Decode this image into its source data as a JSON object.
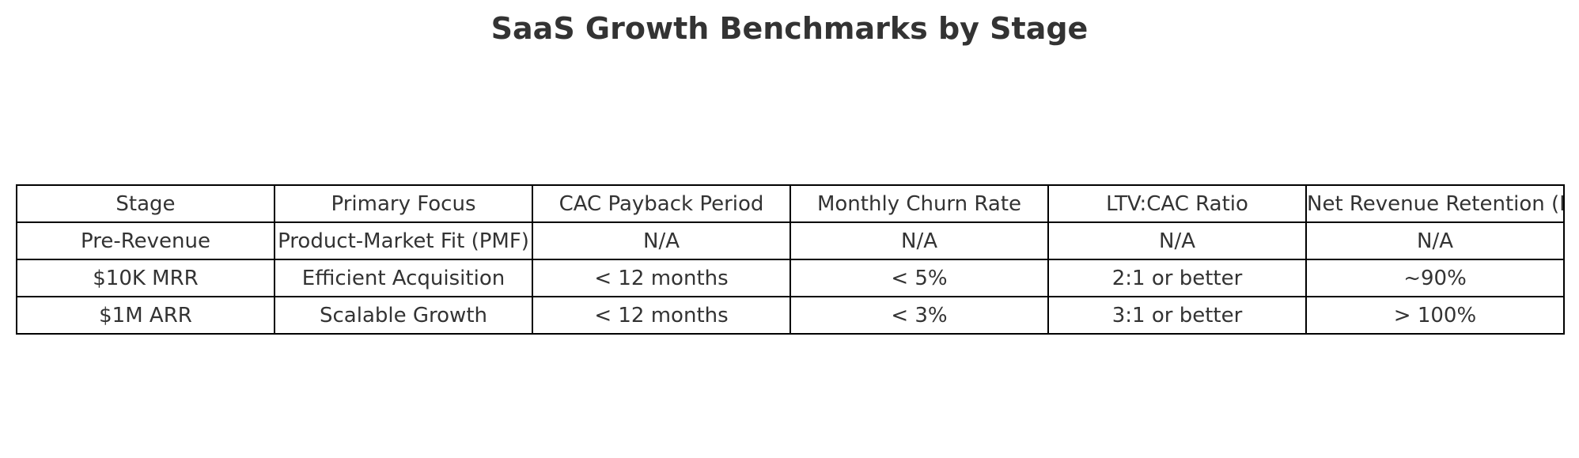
{
  "chart_data": {
    "type": "table",
    "title": "SaaS Growth Benchmarks by Stage",
    "columns": [
      "Stage",
      "Primary Focus",
      "CAC Payback Period",
      "Monthly Churn Rate",
      "LTV:CAC Ratio",
      "Net Revenue Retention (NRR)"
    ],
    "rows": [
      [
        "Pre-Revenue",
        "Product-Market Fit (PMF)",
        "N/A",
        "N/A",
        "N/A",
        "N/A"
      ],
      [
        "$10K MRR",
        "Efficient Acquisition",
        "< 12 months",
        "< 5%",
        "2:1 or better",
        "~90%"
      ],
      [
        "$1M ARR",
        "Scalable Growth",
        "< 12 months",
        "< 3%",
        "3:1 or better",
        "> 100%"
      ]
    ],
    "header_row_color": "#ffffff",
    "border_color": "#000000",
    "text_color": "#333333"
  }
}
